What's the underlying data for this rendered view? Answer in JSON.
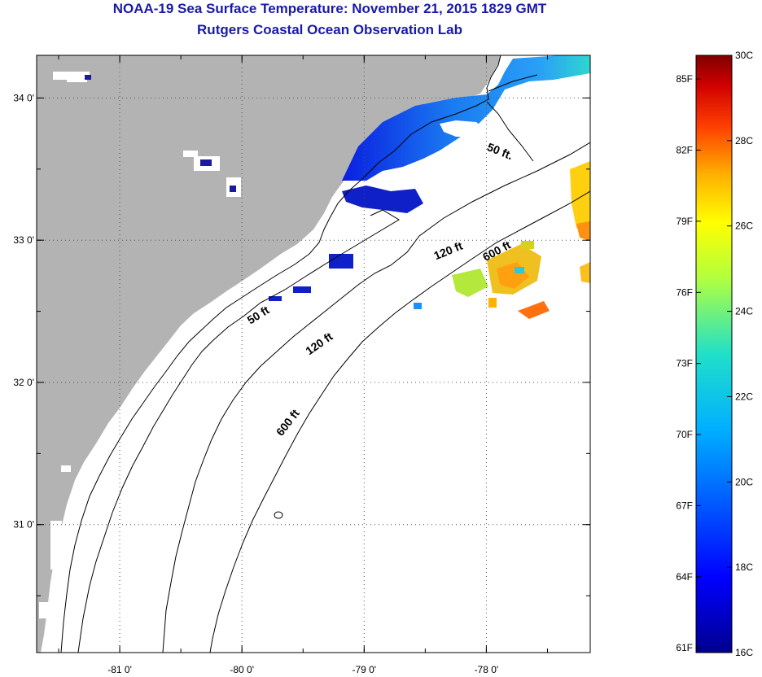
{
  "title": {
    "line1": "NOAA-19 Sea Surface Temperature:  November 21, 2015 1829 GMT",
    "line2": "Rutgers Coastal Ocean Observation Lab"
  },
  "map": {
    "lon_range": [
      -81.68,
      -77.15
    ],
    "lat_range": [
      30.1,
      34.3
    ],
    "x_ticks": [
      {
        "value": -81,
        "label": "-81 0'"
      },
      {
        "value": -80,
        "label": "-80 0'"
      },
      {
        "value": -79,
        "label": "-79 0'"
      },
      {
        "value": -78,
        "label": "-78 0'"
      }
    ],
    "y_ticks": [
      {
        "value": 34,
        "label": "34 0'"
      },
      {
        "value": 33,
        "label": "33 0'"
      },
      {
        "value": 32,
        "label": "32 0'"
      },
      {
        "value": 31,
        "label": "31 0'"
      }
    ],
    "grid": "dotted",
    "contour_labels": [
      {
        "text": "50 ft.",
        "lon": -77.9,
        "lat": 33.6,
        "rotate": 22
      },
      {
        "text": "50 ft",
        "lon": -79.85,
        "lat": 32.45,
        "rotate": -32
      },
      {
        "text": "120 ft",
        "lon": -78.3,
        "lat": 32.9,
        "rotate": -22
      },
      {
        "text": "120 ft",
        "lon": -79.35,
        "lat": 32.25,
        "rotate": -35
      },
      {
        "text": "600 ft",
        "lon": -77.9,
        "lat": 32.9,
        "rotate": -28
      },
      {
        "text": "600 ft",
        "lon": -79.6,
        "lat": 31.7,
        "rotate": -52
      }
    ],
    "colors": {
      "land": "#b3b3b3",
      "ocean": "#ffffff",
      "grid": "#555555"
    }
  },
  "colorbar": {
    "min_c": 16,
    "max_c": 30,
    "celsius_labels": [
      "30C",
      "28C",
      "26C",
      "24C",
      "22C",
      "20C",
      "18C",
      "16C"
    ],
    "fahrenheit_labels": [
      "85F",
      "82F",
      "79F",
      "76F",
      "73F",
      "70F",
      "67F",
      "64F",
      "61F"
    ],
    "fahrenheit_values": [
      85,
      82,
      79,
      76,
      73,
      70,
      67,
      64,
      61
    ]
  }
}
